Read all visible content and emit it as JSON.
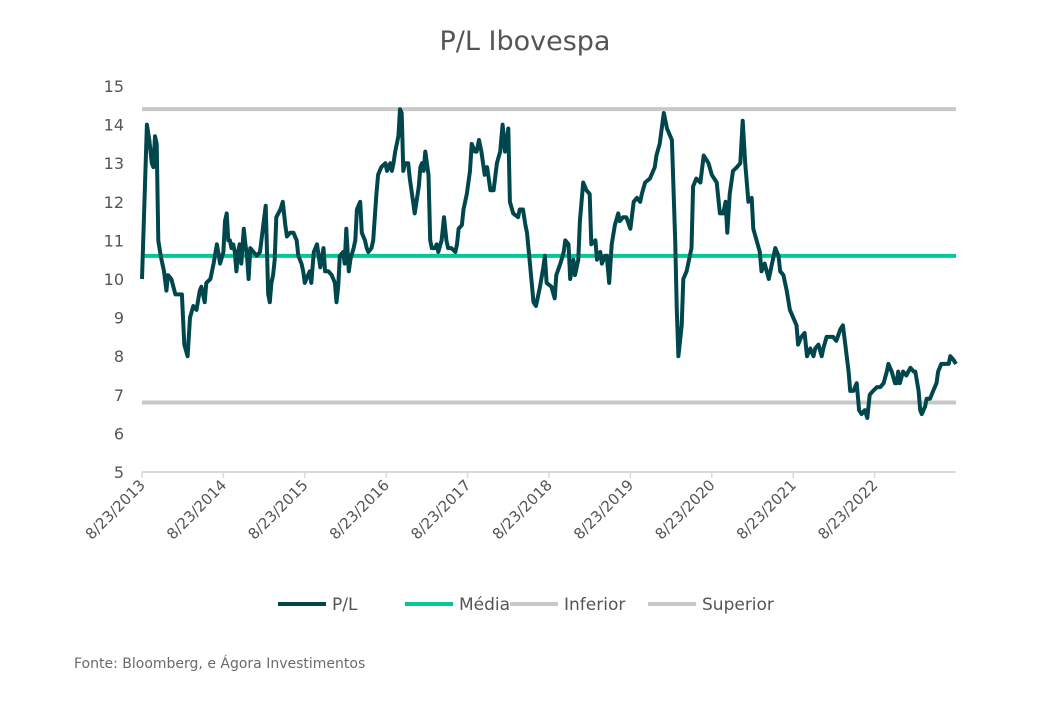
{
  "chart_data": {
    "type": "line",
    "title": "P/L Ibovespa",
    "xlabel": "",
    "ylabel": "",
    "ylim": [
      5,
      15
    ],
    "yticks": [
      "5",
      "6",
      "7",
      "8",
      "9",
      "10",
      "11",
      "12",
      "13",
      "14",
      "15"
    ],
    "xlim": [
      2013.64,
      2023.64
    ],
    "xticks": [
      {
        "value": 2013.64,
        "label": "8/23/2013"
      },
      {
        "value": 2014.64,
        "label": "8/23/2014"
      },
      {
        "value": 2015.64,
        "label": "8/23/2015"
      },
      {
        "value": 2016.64,
        "label": "8/23/2016"
      },
      {
        "value": 2017.64,
        "label": "8/23/2017"
      },
      {
        "value": 2018.64,
        "label": "8/23/2018"
      },
      {
        "value": 2019.64,
        "label": "8/23/2019"
      },
      {
        "value": 2020.64,
        "label": "8/23/2020"
      },
      {
        "value": 2021.64,
        "label": "8/23/2021"
      },
      {
        "value": 2022.64,
        "label": "8/23/2022"
      }
    ],
    "grid": false,
    "legend_position": "bottom",
    "series": [
      {
        "name": "P/L",
        "color": "#00474d",
        "x": [
          2013.64,
          2013.7,
          2013.73,
          2013.76,
          2013.78,
          2013.8,
          2013.82,
          2013.84,
          2013.87,
          2013.91,
          2013.94,
          2013.96,
          2014.0,
          2014.05,
          2014.07,
          2014.13,
          2014.16,
          2014.2,
          2014.23,
          2014.27,
          2014.31,
          2014.35,
          2014.37,
          2014.41,
          2014.43,
          2014.48,
          2014.52,
          2014.56,
          2014.6,
          2014.64,
          2014.66,
          2014.68,
          2014.7,
          2014.72,
          2014.74,
          2014.76,
          2014.78,
          2014.8,
          2014.82,
          2014.84,
          2014.86,
          2014.89,
          2014.91,
          2014.93,
          2014.95,
          2014.97,
          2015.01,
          2015.05,
          2015.09,
          2015.13,
          2015.16,
          2015.19,
          2015.21,
          2015.23,
          2015.25,
          2015.27,
          2015.29,
          2015.34,
          2015.37,
          2015.4,
          2015.42,
          2015.46,
          2015.5,
          2015.54,
          2015.56,
          2015.6,
          2015.62,
          2015.64,
          2015.66,
          2015.7,
          2015.72,
          2015.75,
          2015.79,
          2015.83,
          2015.87,
          2015.89,
          2015.93,
          2015.97,
          2016.01,
          2016.03,
          2016.05,
          2016.07,
          2016.11,
          2016.13,
          2016.15,
          2016.18,
          2016.2,
          2016.24,
          2016.26,
          2016.28,
          2016.32,
          2016.34,
          2016.38,
          2016.4,
          2016.42,
          2016.46,
          2016.48,
          2016.52,
          2016.54,
          2016.58,
          2016.63,
          2016.65,
          2016.69,
          2016.71,
          2016.73,
          2016.75,
          2016.77,
          2016.79,
          2016.81,
          2016.83,
          2016.85,
          2016.87,
          2016.91,
          2016.93,
          2016.97,
          2016.99,
          2017.04,
          2017.06,
          2017.08,
          2017.1,
          2017.12,
          2017.16,
          2017.18,
          2017.2,
          2017.24,
          2017.26,
          2017.28,
          2017.32,
          2017.35,
          2017.38,
          2017.4,
          2017.44,
          2017.49,
          2017.51,
          2017.53,
          2017.57,
          2017.59,
          2017.63,
          2017.67,
          2017.69,
          2017.73,
          2017.75,
          2017.78,
          2017.81,
          2017.85,
          2017.88,
          2017.92,
          2017.96,
          2018.0,
          2018.04,
          2018.07,
          2018.1,
          2018.14,
          2018.16,
          2018.2,
          2018.26,
          2018.28,
          2018.32,
          2018.35,
          2018.37,
          2018.41,
          2018.45,
          2018.48,
          2018.53,
          2018.57,
          2018.59,
          2018.61,
          2018.67,
          2018.71,
          2018.73,
          2018.78,
          2018.82,
          2018.84,
          2018.88,
          2018.9,
          2018.94,
          2018.96,
          2019.0,
          2019.02,
          2019.06,
          2019.1,
          2019.14,
          2019.16,
          2019.21,
          2019.23,
          2019.27,
          2019.29,
          2019.33,
          2019.35,
          2019.38,
          2019.41,
          2019.45,
          2019.49,
          2019.51,
          2019.55,
          2019.59,
          2019.64,
          2019.68,
          2019.72,
          2019.76,
          2019.78,
          2019.82,
          2019.88,
          2019.94,
          2019.96,
          2020.0,
          2020.05,
          2020.09,
          2020.13,
          2020.15,
          2020.19,
          2020.21,
          2020.23,
          2020.27,
          2020.29,
          2020.33,
          2020.35,
          2020.39,
          2020.41,
          2020.45,
          2020.5,
          2020.54,
          2020.6,
          2020.64,
          2020.7,
          2020.74,
          2020.78,
          2020.81,
          2020.83,
          2020.86,
          2020.9,
          2020.95,
          2020.99,
          2021.02,
          2021.05,
          2021.09,
          2021.13,
          2021.15,
          2021.19,
          2021.23,
          2021.25,
          2021.29,
          2021.34,
          2021.38,
          2021.42,
          2021.46,
          2021.48,
          2021.52,
          2021.56,
          2021.6,
          2021.64,
          2021.68,
          2021.7,
          2021.74,
          2021.78,
          2021.81,
          2021.85,
          2021.89,
          2021.91,
          2021.95,
          2021.99,
          2022.01,
          2022.05,
          2022.09,
          2022.13,
          2022.17,
          2022.22,
          2022.25,
          2022.28,
          2022.32,
          2022.34,
          2022.38,
          2022.42,
          2022.45,
          2022.48,
          2022.52,
          2022.55,
          2022.58,
          2022.62,
          2022.67,
          2022.71,
          2022.75,
          2022.79,
          2022.81,
          2022.85,
          2022.89,
          2022.91,
          2022.93,
          2022.95,
          2022.99,
          2023.03,
          2023.08,
          2023.12,
          2023.14,
          2023.18,
          2023.2,
          2023.22,
          2023.26,
          2023.28,
          2023.32,
          2023.36,
          2023.4,
          2023.42,
          2023.46,
          2023.5,
          2023.55,
          2023.57,
          2023.61,
          2023.64
        ],
        "y": [
          10.0,
          14.0,
          13.6,
          13.0,
          12.9,
          13.7,
          13.5,
          11.0,
          10.6,
          10.2,
          9.7,
          10.1,
          10.0,
          9.6,
          9.6,
          9.6,
          8.3,
          8.0,
          9.0,
          9.3,
          9.2,
          9.7,
          9.8,
          9.4,
          9.9,
          10.0,
          10.4,
          10.9,
          10.4,
          10.7,
          11.5,
          11.7,
          11.0,
          11.0,
          10.8,
          10.9,
          10.7,
          10.2,
          10.7,
          10.9,
          10.4,
          11.3,
          10.9,
          10.6,
          10.0,
          10.8,
          10.7,
          10.6,
          10.7,
          11.4,
          11.9,
          9.6,
          9.4,
          9.9,
          10.1,
          10.5,
          11.6,
          11.8,
          12.0,
          11.4,
          11.1,
          11.2,
          11.2,
          11.0,
          10.6,
          10.4,
          10.2,
          9.9,
          10.0,
          10.2,
          9.9,
          10.7,
          10.9,
          10.3,
          10.8,
          10.2,
          10.2,
          10.1,
          9.9,
          9.4,
          9.8,
          10.6,
          10.7,
          10.4,
          11.3,
          10.2,
          10.5,
          10.8,
          11.0,
          11.8,
          12.0,
          11.2,
          11.0,
          10.8,
          10.7,
          10.8,
          11.0,
          12.2,
          12.7,
          12.9,
          13.0,
          12.8,
          13.0,
          12.8,
          13.0,
          13.3,
          13.5,
          13.7,
          14.4,
          14.3,
          12.8,
          13.0,
          13.0,
          12.6,
          12.0,
          11.7,
          12.4,
          12.9,
          13.0,
          12.8,
          13.3,
          12.7,
          11.0,
          10.8,
          10.8,
          10.9,
          10.7,
          11.0,
          11.6,
          11.0,
          10.8,
          10.8,
          10.7,
          10.9,
          11.3,
          11.4,
          11.8,
          12.2,
          12.8,
          13.5,
          13.3,
          13.3,
          13.6,
          13.3,
          12.7,
          12.9,
          12.3,
          12.3,
          13.0,
          13.3,
          14.0,
          13.3,
          13.9,
          12.0,
          11.7,
          11.6,
          11.8,
          11.8,
          11.4,
          11.2,
          10.3,
          9.4,
          9.3,
          9.8,
          10.3,
          10.6,
          9.9,
          9.8,
          9.5,
          10.1,
          10.4,
          10.7,
          11.0,
          10.9,
          10.0,
          10.5,
          10.1,
          10.5,
          11.5,
          12.5,
          12.3,
          12.2,
          10.9,
          11.0,
          10.5,
          10.7,
          10.4,
          10.6,
          10.6,
          9.9,
          10.9,
          11.4,
          11.7,
          11.5,
          11.6,
          11.6,
          11.3,
          12.0,
          12.1,
          12.0,
          12.2,
          12.5,
          12.6,
          12.9,
          13.2,
          13.5,
          14.3,
          13.9,
          13.7,
          13.6,
          11.0,
          9.2,
          8.0,
          8.8,
          10.0,
          10.2,
          10.4,
          10.8,
          12.4,
          12.6,
          12.5,
          13.2,
          13.0,
          12.7,
          12.5,
          11.7,
          11.7,
          12.0,
          11.2,
          12.2,
          12.8,
          12.9,
          13.0,
          14.1,
          13.0,
          12.0,
          12.1,
          11.3,
          11.0,
          10.7,
          10.2,
          10.4,
          10.0,
          10.4,
          10.8,
          10.6,
          10.2,
          10.1,
          9.7,
          9.2,
          9.0,
          8.8,
          8.3,
          8.5,
          8.6,
          8.0,
          8.2,
          8.0,
          8.2,
          8.3,
          8.0,
          8.2,
          8.5,
          8.5,
          8.5,
          8.4,
          8.7,
          8.8,
          8.3,
          7.6,
          7.1,
          7.1,
          7.3,
          6.6,
          6.5,
          6.6,
          6.4,
          7.0,
          7.1,
          7.2,
          7.2,
          7.3,
          7.6,
          7.8,
          7.6,
          7.3,
          7.3,
          7.6,
          7.3,
          7.6,
          7.5,
          7.7,
          7.6,
          7.6,
          7.1,
          6.6,
          6.5,
          6.7,
          6.9,
          6.9,
          7.1,
          7.3,
          7.6,
          7.8,
          7.8,
          7.8,
          8.0,
          7.9,
          7.8
        ]
      },
      {
        "name": "Média",
        "color": "#00c896",
        "constant": 10.6
      },
      {
        "name": "Inferior",
        "color": "#c8c8c8",
        "constant": 6.8
      },
      {
        "name": "Superior",
        "color": "#c8c8c8",
        "constant": 14.4
      }
    ]
  },
  "source": "Fonte: Bloomberg, e Ágora Investimentos"
}
